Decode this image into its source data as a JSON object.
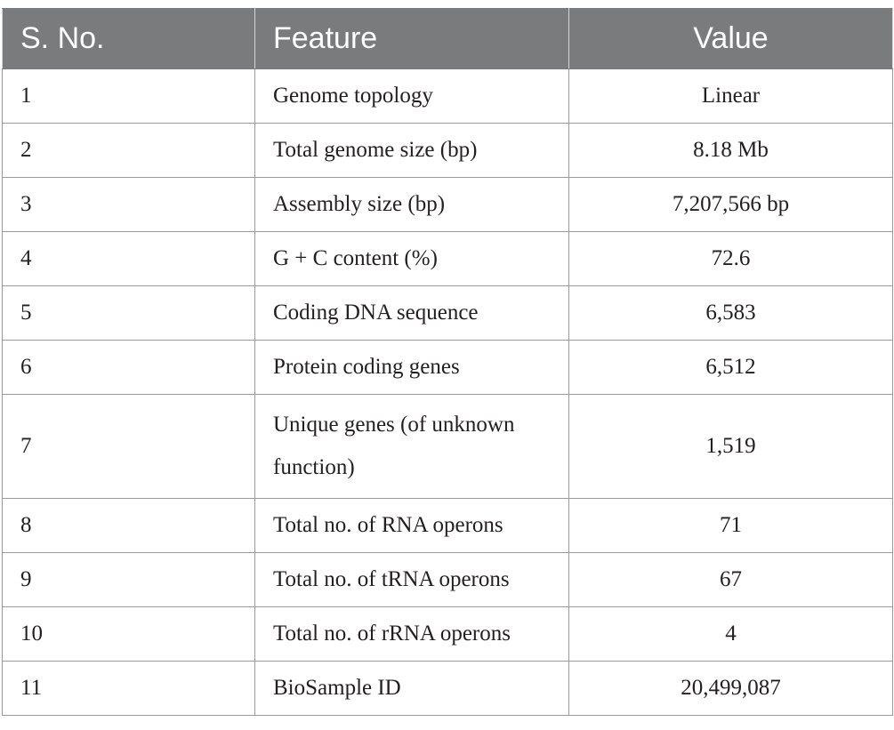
{
  "table": {
    "headers": [
      "S. No.",
      "Feature",
      "Value"
    ],
    "rows": [
      {
        "sno": "1",
        "feature": "Genome topology",
        "value": "Linear"
      },
      {
        "sno": "2",
        "feature": "Total genome size (bp)",
        "value": "8.18 Mb"
      },
      {
        "sno": "3",
        "feature": "Assembly size (bp)",
        "value": "7,207,566 bp"
      },
      {
        "sno": "4",
        "feature": "G + C content (%)",
        "value": "72.6"
      },
      {
        "sno": "5",
        "feature": "Coding DNA sequence",
        "value": "6,583"
      },
      {
        "sno": "6",
        "feature": "Protein coding genes",
        "value": "6,512"
      },
      {
        "sno": "7",
        "feature": "Unique genes (of unknown function)",
        "value": "1,519"
      },
      {
        "sno": "8",
        "feature": "Total no. of RNA operons",
        "value": "71"
      },
      {
        "sno": "9",
        "feature": "Total no. of tRNA operons",
        "value": "67"
      },
      {
        "sno": "10",
        "feature": "Total no. of rRNA operons",
        "value": "4"
      },
      {
        "sno": "11",
        "feature": "BioSample ID",
        "value": "20,499,087"
      }
    ]
  }
}
